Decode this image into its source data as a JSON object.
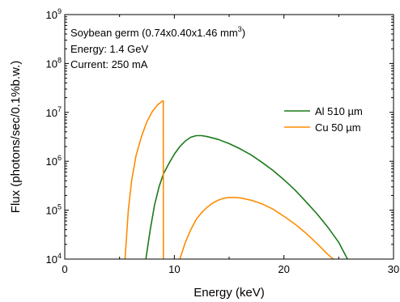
{
  "chart_data": {
    "type": "line",
    "xlabel": "Energy (keV)",
    "ylabel": "Flux (photons/sec/0.1%b.w.)",
    "xlim": [
      0,
      30
    ],
    "ylim": [
      10000,
      1000000000
    ],
    "yscale": "log",
    "grid": false,
    "legend_position": "right",
    "x_ticks": [
      "0",
      "10",
      "20",
      "30"
    ],
    "y_ticks": [
      {
        "base": "10",
        "exp": "4"
      },
      {
        "base": "10",
        "exp": "5"
      },
      {
        "base": "10",
        "exp": "6"
      },
      {
        "base": "10",
        "exp": "7"
      },
      {
        "base": "10",
        "exp": "8"
      },
      {
        "base": "10",
        "exp": "9"
      }
    ],
    "annotations": {
      "line1_prefix": "Soybean germ (0.74x0.40x1.46 mm",
      "line1_sup": "3",
      "line1_suffix": ")",
      "line2": "Energy: 1.4 GeV",
      "line3": "Current: 250 mA"
    },
    "series": [
      {
        "name": "Al 510 µm",
        "color": "#1a7a1a",
        "segments": [
          [
            [
              7.4,
              10000
            ],
            [
              7.8,
              40000
            ],
            [
              8.2,
              130000
            ],
            [
              8.6,
              300000
            ],
            [
              9.0,
              550000
            ],
            [
              9.5,
              900000
            ],
            [
              10.0,
              1400000
            ],
            [
              10.5,
              2000000
            ],
            [
              11.0,
              2600000
            ],
            [
              11.5,
              3100000
            ],
            [
              12.0,
              3350000
            ],
            [
              12.5,
              3350000
            ],
            [
              13.0,
              3200000
            ],
            [
              14.0,
              2800000
            ],
            [
              15.0,
              2300000
            ],
            [
              16.0,
              1800000
            ],
            [
              17.0,
              1350000
            ],
            [
              18.0,
              950000
            ],
            [
              19.0,
              650000
            ],
            [
              20.0,
              420000
            ],
            [
              21.0,
              260000
            ],
            [
              22.0,
              150000
            ],
            [
              23.0,
              85000
            ],
            [
              24.0,
              45000
            ],
            [
              25.0,
              22000
            ],
            [
              25.8,
              10000
            ]
          ]
        ]
      },
      {
        "name": "Cu 50 µm",
        "color": "#ff8c00",
        "segments": [
          [
            [
              5.5,
              10000
            ],
            [
              5.8,
              100000
            ],
            [
              6.1,
              400000
            ],
            [
              6.5,
              1300000
            ],
            [
              7.0,
              3200000
            ],
            [
              7.5,
              6500000
            ],
            [
              8.0,
              10500000
            ],
            [
              8.5,
              14500000
            ],
            [
              8.99,
              17500000
            ]
          ],
          [
            [
              8.99,
              17500000
            ],
            [
              9.0,
              10000
            ]
          ],
          [
            [
              10.5,
              10000
            ],
            [
              11.0,
              22000
            ],
            [
              11.5,
              40000
            ],
            [
              12.0,
              65000
            ],
            [
              12.5,
              90000
            ],
            [
              13.0,
              115000
            ],
            [
              13.5,
              140000
            ],
            [
              14.0,
              160000
            ],
            [
              14.5,
              175000
            ],
            [
              15.0,
              182000
            ],
            [
              15.5,
              182000
            ],
            [
              16.0,
              178000
            ],
            [
              17.0,
              160000
            ],
            [
              18.0,
              135000
            ],
            [
              19.0,
              105000
            ],
            [
              20.0,
              75000
            ],
            [
              21.0,
              52000
            ],
            [
              22.0,
              34000
            ],
            [
              23.0,
              21000
            ],
            [
              24.0,
              12500
            ],
            [
              24.5,
              10000
            ]
          ]
        ]
      }
    ]
  }
}
